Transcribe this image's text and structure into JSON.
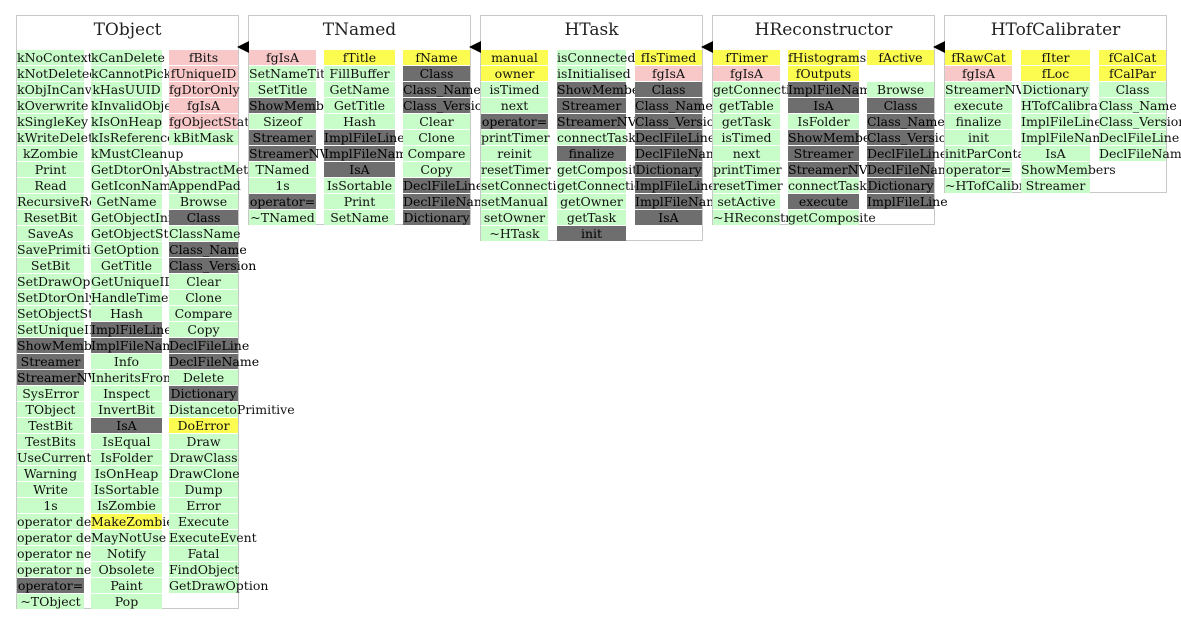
{
  "classes": [
    {
      "name": "TObject",
      "columns": [
        [
          {
            "t": "kNoContextMenu",
            "c": "green"
          },
          {
            "t": "kNotDeleted",
            "c": "green"
          },
          {
            "t": "kObjInCanvas",
            "c": "green"
          },
          {
            "t": "kOverwrite",
            "c": "green"
          },
          {
            "t": "kSingleKey",
            "c": "green"
          },
          {
            "t": "kWriteDelete",
            "c": "green"
          },
          {
            "t": "kZombie",
            "c": "green"
          },
          {
            "t": "Print",
            "c": "green"
          },
          {
            "t": "Read",
            "c": "green"
          },
          {
            "t": "RecursiveRemove",
            "c": "green"
          },
          {
            "t": "ResetBit",
            "c": "green"
          },
          {
            "t": "SaveAs",
            "c": "green"
          },
          {
            "t": "SavePrimitive",
            "c": "green"
          },
          {
            "t": "SetBit",
            "c": "green"
          },
          {
            "t": "SetDrawOption",
            "c": "green"
          },
          {
            "t": "SetDtorOnly",
            "c": "green"
          },
          {
            "t": "SetObjectStat",
            "c": "green"
          },
          {
            "t": "SetUniqueID",
            "c": "green"
          },
          {
            "t": "ShowMembers",
            "c": "grey"
          },
          {
            "t": "Streamer",
            "c": "grey"
          },
          {
            "t": "StreamerNVirtual",
            "c": "grey"
          },
          {
            "t": "SysError",
            "c": "green"
          },
          {
            "t": "TObject",
            "c": "green"
          },
          {
            "t": "TestBit",
            "c": "green"
          },
          {
            "t": "TestBits",
            "c": "green"
          },
          {
            "t": "UseCurrentStyle",
            "c": "green"
          },
          {
            "t": "Warning",
            "c": "green"
          },
          {
            "t": "Write",
            "c": "green"
          },
          {
            "t": "1s",
            "c": "green"
          },
          {
            "t": "operator delete",
            "c": "green"
          },
          {
            "t": "operator delete[]",
            "c": "green"
          },
          {
            "t": "operator new",
            "c": "green"
          },
          {
            "t": "operator new[]",
            "c": "green"
          },
          {
            "t": "operator=",
            "c": "grey"
          },
          {
            "t": "~TObject",
            "c": "green"
          }
        ],
        [
          {
            "t": "kCanDelete",
            "c": "green"
          },
          {
            "t": "kCannotPick",
            "c": "green"
          },
          {
            "t": "kHasUUID",
            "c": "green"
          },
          {
            "t": "kInvalidObject",
            "c": "green"
          },
          {
            "t": "kIsOnHeap",
            "c": "green"
          },
          {
            "t": "kIsReferenced",
            "c": "green"
          },
          {
            "t": "kMustCleanup",
            "c": "green"
          },
          {
            "t": "GetDtorOnly",
            "c": "green"
          },
          {
            "t": "GetIconName",
            "c": "green"
          },
          {
            "t": "GetName",
            "c": "green"
          },
          {
            "t": "GetObjectInfo",
            "c": "green"
          },
          {
            "t": "GetObjectStat",
            "c": "green"
          },
          {
            "t": "GetOption",
            "c": "green"
          },
          {
            "t": "GetTitle",
            "c": "green"
          },
          {
            "t": "GetUniqueID",
            "c": "green"
          },
          {
            "t": "HandleTimer",
            "c": "green"
          },
          {
            "t": "Hash",
            "c": "green"
          },
          {
            "t": "ImplFileLine",
            "c": "grey"
          },
          {
            "t": "ImplFileName",
            "c": "grey"
          },
          {
            "t": "Info",
            "c": "green"
          },
          {
            "t": "InheritsFrom",
            "c": "green"
          },
          {
            "t": "Inspect",
            "c": "green"
          },
          {
            "t": "InvertBit",
            "c": "green"
          },
          {
            "t": "IsA",
            "c": "grey"
          },
          {
            "t": "IsEqual",
            "c": "green"
          },
          {
            "t": "IsFolder",
            "c": "green"
          },
          {
            "t": "IsOnHeap",
            "c": "green"
          },
          {
            "t": "IsSortable",
            "c": "green"
          },
          {
            "t": "IsZombie",
            "c": "green"
          },
          {
            "t": "MakeZombie",
            "c": "yellow"
          },
          {
            "t": "MayNotUse",
            "c": "green"
          },
          {
            "t": "Notify",
            "c": "green"
          },
          {
            "t": "Obsolete",
            "c": "green"
          },
          {
            "t": "Paint",
            "c": "green"
          },
          {
            "t": "Pop",
            "c": "green"
          }
        ],
        [
          {
            "t": "fBits",
            "c": "pink"
          },
          {
            "t": "fUniqueID",
            "c": "pink"
          },
          {
            "t": "fgDtorOnly",
            "c": "pink"
          },
          {
            "t": "fgIsA",
            "c": "pink"
          },
          {
            "t": "fgObjectStat",
            "c": "pink"
          },
          {
            "t": "kBitMask",
            "c": "green"
          },
          {
            "t": "",
            "c": "white"
          },
          {
            "t": "AbstractMethod",
            "c": "green"
          },
          {
            "t": "AppendPad",
            "c": "green"
          },
          {
            "t": "Browse",
            "c": "green"
          },
          {
            "t": "Class",
            "c": "grey"
          },
          {
            "t": "ClassName",
            "c": "green"
          },
          {
            "t": "Class_Name",
            "c": "grey"
          },
          {
            "t": "Class_Version",
            "c": "grey"
          },
          {
            "t": "Clear",
            "c": "green"
          },
          {
            "t": "Clone",
            "c": "green"
          },
          {
            "t": "Compare",
            "c": "green"
          },
          {
            "t": "Copy",
            "c": "green"
          },
          {
            "t": "DeclFileLine",
            "c": "grey"
          },
          {
            "t": "DeclFileName",
            "c": "grey"
          },
          {
            "t": "Delete",
            "c": "green"
          },
          {
            "t": "Dictionary",
            "c": "grey"
          },
          {
            "t": "DistancetoPrimitive",
            "c": "green"
          },
          {
            "t": "DoError",
            "c": "yellow"
          },
          {
            "t": "Draw",
            "c": "green"
          },
          {
            "t": "DrawClass",
            "c": "green"
          },
          {
            "t": "DrawClone",
            "c": "green"
          },
          {
            "t": "Dump",
            "c": "green"
          },
          {
            "t": "Error",
            "c": "green"
          },
          {
            "t": "Execute",
            "c": "green"
          },
          {
            "t": "ExecuteEvent",
            "c": "green"
          },
          {
            "t": "Fatal",
            "c": "green"
          },
          {
            "t": "FindObject",
            "c": "green"
          },
          {
            "t": "GetDrawOption",
            "c": "green"
          }
        ]
      ]
    },
    {
      "name": "TNamed",
      "columns": [
        [
          {
            "t": "fgIsA",
            "c": "pink"
          },
          {
            "t": "SetNameTitle",
            "c": "green"
          },
          {
            "t": "SetTitle",
            "c": "green"
          },
          {
            "t": "ShowMembers",
            "c": "grey"
          },
          {
            "t": "Sizeof",
            "c": "green"
          },
          {
            "t": "Streamer",
            "c": "grey"
          },
          {
            "t": "StreamerNVirtual",
            "c": "grey"
          },
          {
            "t": "TNamed",
            "c": "green"
          },
          {
            "t": "1s",
            "c": "green"
          },
          {
            "t": "operator=",
            "c": "grey"
          },
          {
            "t": "~TNamed",
            "c": "green"
          }
        ],
        [
          {
            "t": "fTitle",
            "c": "yellow"
          },
          {
            "t": "FillBuffer",
            "c": "green"
          },
          {
            "t": "GetName",
            "c": "green"
          },
          {
            "t": "GetTitle",
            "c": "green"
          },
          {
            "t": "Hash",
            "c": "green"
          },
          {
            "t": "ImplFileLine",
            "c": "grey"
          },
          {
            "t": "ImplFileName",
            "c": "grey"
          },
          {
            "t": "IsA",
            "c": "grey"
          },
          {
            "t": "IsSortable",
            "c": "green"
          },
          {
            "t": "Print",
            "c": "green"
          },
          {
            "t": "SetName",
            "c": "green"
          }
        ],
        [
          {
            "t": "fName",
            "c": "yellow"
          },
          {
            "t": "Class",
            "c": "grey"
          },
          {
            "t": "Class_Name",
            "c": "grey"
          },
          {
            "t": "Class_Version",
            "c": "grey"
          },
          {
            "t": "Clear",
            "c": "green"
          },
          {
            "t": "Clone",
            "c": "green"
          },
          {
            "t": "Compare",
            "c": "green"
          },
          {
            "t": "Copy",
            "c": "green"
          },
          {
            "t": "DeclFileLine",
            "c": "grey"
          },
          {
            "t": "DeclFileName",
            "c": "grey"
          },
          {
            "t": "Dictionary",
            "c": "grey"
          }
        ]
      ]
    },
    {
      "name": "HTask",
      "columns": [
        [
          {
            "t": "manual",
            "c": "yellow"
          },
          {
            "t": "owner",
            "c": "yellow"
          },
          {
            "t": "isTimed",
            "c": "green"
          },
          {
            "t": "next",
            "c": "green"
          },
          {
            "t": "operator=",
            "c": "grey"
          },
          {
            "t": "printTimer",
            "c": "green"
          },
          {
            "t": "reinit",
            "c": "green"
          },
          {
            "t": "resetTimer",
            "c": "green"
          },
          {
            "t": "setConnections",
            "c": "green"
          },
          {
            "t": "setManual",
            "c": "green"
          },
          {
            "t": "setOwner",
            "c": "green"
          },
          {
            "t": "~HTask",
            "c": "green"
          }
        ],
        [
          {
            "t": "isConnected",
            "c": "green"
          },
          {
            "t": "isInitialised",
            "c": "green"
          },
          {
            "t": "ShowMembers",
            "c": "grey"
          },
          {
            "t": "Streamer",
            "c": "grey"
          },
          {
            "t": "StreamerNVirtual",
            "c": "grey"
          },
          {
            "t": "connectTask",
            "c": "green"
          },
          {
            "t": "finalize",
            "c": "grey"
          },
          {
            "t": "getComposite",
            "c": "green"
          },
          {
            "t": "getConnections",
            "c": "green"
          },
          {
            "t": "getOwner",
            "c": "green"
          },
          {
            "t": "getTask",
            "c": "green"
          },
          {
            "t": "init",
            "c": "grey"
          }
        ],
        [
          {
            "t": "fIsTimed",
            "c": "yellow"
          },
          {
            "t": "fgIsA",
            "c": "pink"
          },
          {
            "t": "Class",
            "c": "grey"
          },
          {
            "t": "Class_Name",
            "c": "grey"
          },
          {
            "t": "Class_Version",
            "c": "grey"
          },
          {
            "t": "DeclFileLine",
            "c": "grey"
          },
          {
            "t": "DeclFileName",
            "c": "grey"
          },
          {
            "t": "Dictionary",
            "c": "grey"
          },
          {
            "t": "ImplFileLine",
            "c": "grey"
          },
          {
            "t": "ImplFileName",
            "c": "grey"
          },
          {
            "t": "IsA",
            "c": "grey"
          }
        ]
      ]
    },
    {
      "name": "HReconstructor",
      "columns": [
        [
          {
            "t": "fTimer",
            "c": "yellow"
          },
          {
            "t": "fgIsA",
            "c": "pink"
          },
          {
            "t": "getConnections",
            "c": "green"
          },
          {
            "t": "getTable",
            "c": "green"
          },
          {
            "t": "getTask",
            "c": "green"
          },
          {
            "t": "isTimed",
            "c": "green"
          },
          {
            "t": "next",
            "c": "green"
          },
          {
            "t": "printTimer",
            "c": "green"
          },
          {
            "t": "resetTimer",
            "c": "green"
          },
          {
            "t": "setActive",
            "c": "green"
          },
          {
            "t": "~HReconstructor",
            "c": "green"
          }
        ],
        [
          {
            "t": "fHistograms",
            "c": "yellow"
          },
          {
            "t": "fOutputs",
            "c": "yellow"
          },
          {
            "t": "ImplFileName",
            "c": "grey"
          },
          {
            "t": "IsA",
            "c": "grey"
          },
          {
            "t": "IsFolder",
            "c": "green"
          },
          {
            "t": "ShowMembers",
            "c": "grey"
          },
          {
            "t": "Streamer",
            "c": "grey"
          },
          {
            "t": "StreamerNVirtual",
            "c": "grey"
          },
          {
            "t": "connectTask",
            "c": "green"
          },
          {
            "t": "execute",
            "c": "grey"
          },
          {
            "t": "getComposite",
            "c": "green"
          }
        ],
        [
          {
            "t": "fActive",
            "c": "yellow"
          },
          {
            "t": "",
            "c": "white"
          },
          {
            "t": "Browse",
            "c": "green"
          },
          {
            "t": "Class",
            "c": "grey"
          },
          {
            "t": "Class_Name",
            "c": "grey"
          },
          {
            "t": "Class_Version",
            "c": "grey"
          },
          {
            "t": "DeclFileLine",
            "c": "grey"
          },
          {
            "t": "DeclFileName",
            "c": "grey"
          },
          {
            "t": "Dictionary",
            "c": "grey"
          },
          {
            "t": "ImplFileLine",
            "c": "grey"
          }
        ]
      ]
    },
    {
      "name": "HTofCalibrater",
      "columns": [
        [
          {
            "t": "fRawCat",
            "c": "yellow"
          },
          {
            "t": "fgIsA",
            "c": "pink"
          },
          {
            "t": "StreamerNVirtual",
            "c": "green"
          },
          {
            "t": "execute",
            "c": "green"
          },
          {
            "t": "finalize",
            "c": "green"
          },
          {
            "t": "init",
            "c": "green"
          },
          {
            "t": "initParContainer",
            "c": "green"
          },
          {
            "t": "operator=",
            "c": "green"
          },
          {
            "t": "~HTofCalibrater",
            "c": "green"
          }
        ],
        [
          {
            "t": "fIter",
            "c": "yellow"
          },
          {
            "t": "fLoc",
            "c": "yellow"
          },
          {
            "t": "Dictionary",
            "c": "green"
          },
          {
            "t": "HTofCalibrater",
            "c": "green"
          },
          {
            "t": "ImplFileLine",
            "c": "green"
          },
          {
            "t": "ImplFileName",
            "c": "green"
          },
          {
            "t": "IsA",
            "c": "green"
          },
          {
            "t": "ShowMembers",
            "c": "green"
          },
          {
            "t": "Streamer",
            "c": "green"
          }
        ],
        [
          {
            "t": "fCalCat",
            "c": "yellow"
          },
          {
            "t": "fCalPar",
            "c": "yellow"
          },
          {
            "t": "Class",
            "c": "green"
          },
          {
            "t": "Class_Name",
            "c": "green"
          },
          {
            "t": "Class_Version",
            "c": "green"
          },
          {
            "t": "DeclFileLine",
            "c": "green"
          },
          {
            "t": "DeclFileName",
            "c": "green"
          }
        ]
      ]
    }
  ],
  "colors": {
    "green": "#c8fcc8",
    "pink": "#f8c8c8",
    "yellow": "#fcfc50",
    "grey": "#6e6e6e",
    "border": "#c8c8c8"
  }
}
